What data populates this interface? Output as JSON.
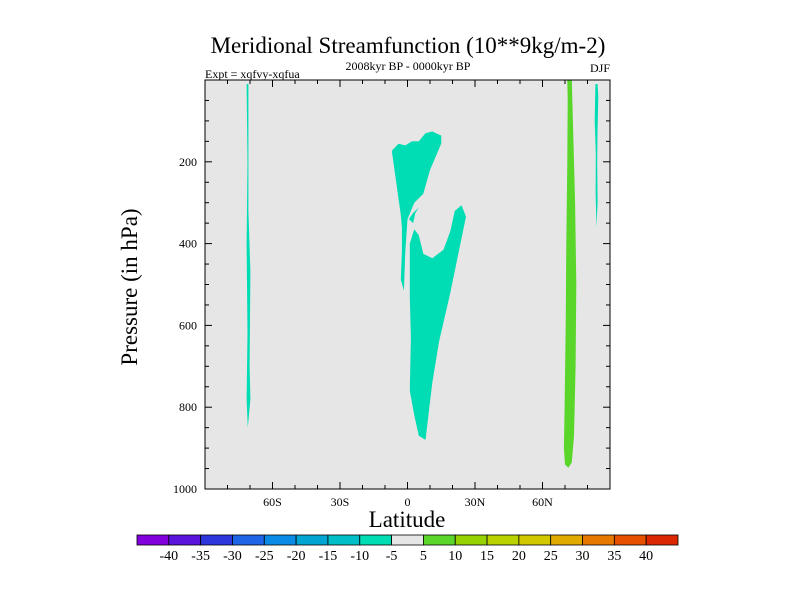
{
  "chart_data": {
    "type": "contour",
    "title": "Meridional Streamfunction (10**9kg/m-2)",
    "left_subtitle": "Expt = xqfvy-xqfua",
    "center_subtitle": "2008kyr BP - 0000kyr BP",
    "right_subtitle": "DJF",
    "xlabel": "Latitude",
    "ylabel": "Pressure (in hPa)",
    "xlim": [
      -90,
      90
    ],
    "ylim": [
      1000,
      0
    ],
    "xticks": [
      {
        "value": -60,
        "label": "60S"
      },
      {
        "value": -30,
        "label": "30S"
      },
      {
        "value": 0,
        "label": "0"
      },
      {
        "value": 30,
        "label": "30N"
      },
      {
        "value": 60,
        "label": "60N"
      }
    ],
    "yticks": [
      {
        "value": 200,
        "label": "200"
      },
      {
        "value": 400,
        "label": "400"
      },
      {
        "value": 600,
        "label": "600"
      },
      {
        "value": 800,
        "label": "800"
      },
      {
        "value": 1000,
        "label": "1000"
      }
    ],
    "background_color": "#e6e6e6",
    "filled_regions": [
      {
        "level": "-10 to -5",
        "color": "#00dcb4",
        "points": [
          [
            -71.5,
            10
          ],
          [
            -70.7,
            10
          ],
          [
            -70.7,
            320
          ],
          [
            -69.8,
            470
          ],
          [
            -70.2,
            700
          ],
          [
            -69.8,
            780
          ],
          [
            -71.0,
            850
          ],
          [
            -71.5,
            780
          ],
          [
            -71.1,
            620
          ],
          [
            -71.5,
            400
          ],
          [
            -71.1,
            200
          ]
        ]
      },
      {
        "level": "-10 to -5",
        "color": "#00dcb4",
        "points": [
          [
            -7,
            173
          ],
          [
            -4,
            156
          ],
          [
            -1,
            160
          ],
          [
            2,
            150
          ],
          [
            5,
            150
          ],
          [
            8,
            130
          ],
          [
            11,
            126
          ],
          [
            15,
            136
          ],
          [
            15,
            155
          ],
          [
            10,
            220
          ],
          [
            7,
            278
          ],
          [
            3,
            300
          ],
          [
            0,
            340
          ],
          [
            -1,
            420
          ],
          [
            -1.6,
            515
          ],
          [
            -3,
            488
          ],
          [
            -2.5,
            420
          ],
          [
            -2.5,
            360
          ],
          [
            -3,
            330
          ]
        ]
      },
      {
        "level": "-10 to -5",
        "color": "#00dcb4",
        "points": [
          [
            0.6,
            340
          ],
          [
            2.5,
            325
          ],
          [
            5,
            312
          ],
          [
            3.5,
            325
          ],
          [
            2.5,
            350
          ]
        ]
      },
      {
        "level": "-10 to -5",
        "color": "#00dcb4",
        "points": [
          [
            3,
            365
          ],
          [
            5,
            380
          ],
          [
            7,
            425
          ],
          [
            11,
            436
          ],
          [
            16,
            415
          ],
          [
            19,
            370
          ],
          [
            21,
            320
          ],
          [
            24,
            306
          ],
          [
            26,
            334
          ],
          [
            19,
            520
          ],
          [
            14,
            640
          ],
          [
            11,
            740
          ],
          [
            8,
            880
          ],
          [
            5,
            870
          ],
          [
            3,
            820
          ],
          [
            1,
            760
          ],
          [
            1.5,
            630
          ],
          [
            1,
            530
          ],
          [
            1,
            470
          ],
          [
            1,
            400
          ]
        ]
      },
      {
        "level": "-10 to -5",
        "color": "#00dcb4",
        "points": [
          [
            83.5,
            10
          ],
          [
            84.5,
            10
          ],
          [
            84.8,
            40
          ],
          [
            84.5,
            120
          ],
          [
            84.3,
            200
          ],
          [
            84.5,
            300
          ],
          [
            84.0,
            360
          ],
          [
            83.6,
            280
          ],
          [
            83.7,
            180
          ],
          [
            83.2,
            100
          ]
        ]
      },
      {
        "level": "5 to 10",
        "color": "#5ad52a",
        "points": [
          [
            71.0,
            0
          ],
          [
            73.0,
            0
          ],
          [
            73.5,
            100
          ],
          [
            74.5,
            300
          ],
          [
            75.0,
            500
          ],
          [
            74.7,
            700
          ],
          [
            74.0,
            870
          ],
          [
            73.0,
            935
          ],
          [
            71.5,
            948
          ],
          [
            70.0,
            940
          ],
          [
            69.5,
            900
          ],
          [
            69.8,
            800
          ],
          [
            70.3,
            600
          ],
          [
            70.6,
            400
          ],
          [
            71.0,
            200
          ],
          [
            71.2,
            50
          ]
        ]
      }
    ],
    "colorbar": {
      "labels": [
        "-40",
        "-35",
        "-30",
        "-25",
        "-20",
        "-15",
        "-10",
        "-5",
        "5",
        "10",
        "15",
        "20",
        "25",
        "30",
        "35",
        "40"
      ],
      "colors": [
        "#8200dc",
        "#5a14dc",
        "#2d37dc",
        "#1e64e6",
        "#0a8ce6",
        "#00a5d2",
        "#00bec8",
        "#00dcb4",
        "#e6e6e6",
        "#5ad52a",
        "#96d200",
        "#b9d200",
        "#d2c800",
        "#e1aa00",
        "#e67800",
        "#e65000",
        "#dc2800"
      ]
    }
  }
}
